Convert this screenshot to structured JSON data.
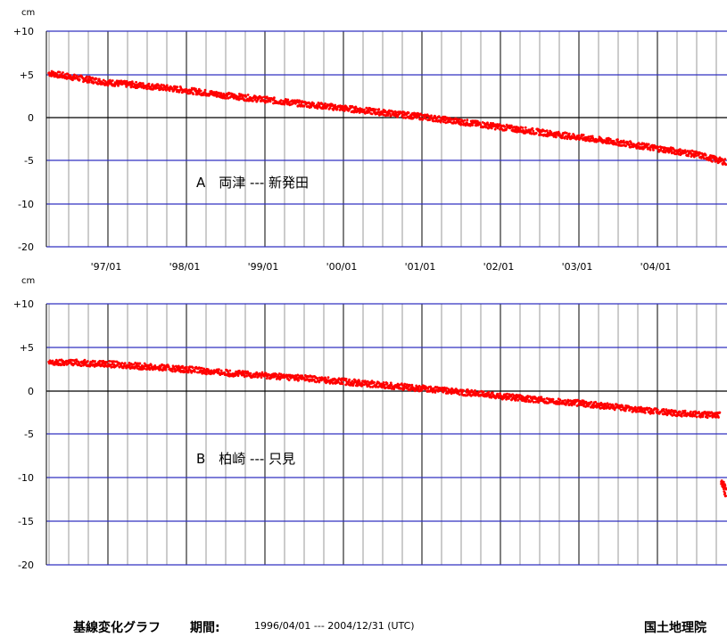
{
  "chart_data": [
    {
      "type": "scatter",
      "annotation": "A　両津 --- 新発田",
      "unit": "cm",
      "yticks": [
        "+10",
        "+5",
        "0",
        "-5",
        "-10",
        "-20"
      ],
      "xticks": [
        "'97/01",
        "'98/01",
        "'99/01",
        "'00/01",
        "'01/01",
        "'02/01",
        "'03/01",
        "'04/01"
      ],
      "xlim": [
        "1996/04/01",
        "2004/12/31"
      ],
      "series": [
        {
          "color": "#ff0000",
          "x": [
            "1996/04/01",
            "1996/07/01",
            "1997/01/01",
            "1997/07/01",
            "1998/01/01",
            "1998/07/01",
            "1999/01/01",
            "1999/07/01",
            "2000/01/01",
            "2000/07/01",
            "2001/01/01",
            "2001/07/01",
            "2002/01/01",
            "2002/07/01",
            "2003/01/01",
            "2003/07/01",
            "2004/01/01",
            "2004/07/01",
            "2004/12/31"
          ],
          "y": [
            5.2,
            4.8,
            4.1,
            3.7,
            3.2,
            2.6,
            2.1,
            1.6,
            1.1,
            0.6,
            0.1,
            -0.5,
            -1.1,
            -1.7,
            -2.3,
            -2.9,
            -3.6,
            -4.3,
            -5.5
          ]
        }
      ]
    },
    {
      "type": "scatter",
      "annotation": "B　柏崎 --- 只見",
      "unit": "cm",
      "yticks": [
        "+10",
        "+5",
        "0",
        "-5",
        "-10",
        "-15",
        "-20"
      ],
      "xticks": [
        "'97/01",
        "'98/01",
        "'99/01",
        "'00/01",
        "'01/01",
        "'02/01",
        "'03/01",
        "'04/01"
      ],
      "xlim": [
        "1996/04/01",
        "2004/12/31"
      ],
      "series": [
        {
          "color": "#ff0000",
          "x": [
            "1996/04/01",
            "1996/07/01",
            "1997/01/01",
            "1997/07/01",
            "1998/01/01",
            "1998/07/01",
            "1999/01/01",
            "1999/07/01",
            "2000/01/01",
            "2000/07/01",
            "2001/01/01",
            "2001/07/01",
            "2002/01/01",
            "2002/07/01",
            "2003/01/01",
            "2003/07/01",
            "2004/01/01",
            "2004/07/01",
            "2004/10/20",
            "2004/10/25",
            "2004/11/15",
            "2004/12/31"
          ],
          "y": [
            3.2,
            3.3,
            3.1,
            2.8,
            2.5,
            2.1,
            1.8,
            1.5,
            1.1,
            0.7,
            0.3,
            -0.1,
            -0.6,
            -1.0,
            -1.4,
            -1.9,
            -2.4,
            -2.7,
            -2.8,
            -10.5,
            -12.0,
            -12.5
          ]
        }
      ]
    }
  ],
  "footer": {
    "title": "基線変化グラフ",
    "period_label": "期間:",
    "period": "1996/04/01 --- 2004/12/31 (UTC)",
    "org": "国土地理院"
  }
}
